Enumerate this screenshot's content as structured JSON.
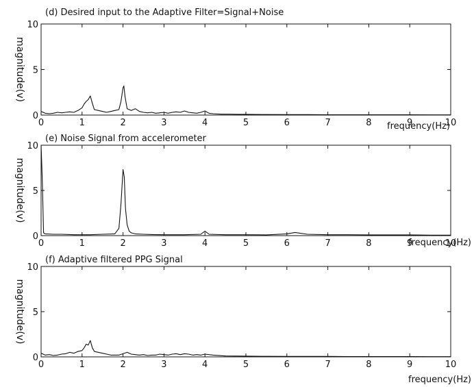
{
  "chart_data": [
    {
      "type": "line",
      "title": "(d) Desired input to the Adaptive Filter=Signal+Noise",
      "xlabel": "frequency(Hz)",
      "ylabel": "magnitude(v)",
      "xlim": [
        0,
        10
      ],
      "ylim": [
        0,
        10
      ],
      "xticks": [
        "0",
        "1",
        "2",
        "3",
        "4",
        "5",
        "6",
        "7",
        "8",
        "9",
        "10"
      ],
      "yticks": [
        "0",
        "5",
        "10"
      ],
      "grid": false,
      "series": [
        {
          "x": [
            0,
            0.1,
            0.2,
            0.3,
            0.4,
            0.5,
            0.6,
            0.7,
            0.8,
            0.9,
            1.0,
            1.05,
            1.1,
            1.15,
            1.2,
            1.25,
            1.3,
            1.4,
            1.5,
            1.6,
            1.7,
            1.8,
            1.9,
            1.95,
            2.0,
            2.02,
            2.05,
            2.1,
            2.2,
            2.3,
            2.4,
            2.5,
            2.6,
            2.7,
            2.8,
            2.9,
            3.0,
            3.1,
            3.2,
            3.3,
            3.4,
            3.5,
            3.6,
            3.7,
            3.8,
            3.9,
            4.0,
            4.1,
            4.2,
            4.4,
            4.6,
            4.8,
            5.0,
            5.5,
            6.0,
            6.5,
            7.0,
            7.5,
            8.0,
            8.5,
            9.0,
            9.5,
            10.0
          ],
          "y": [
            0.4,
            0.2,
            0.15,
            0.2,
            0.3,
            0.25,
            0.3,
            0.35,
            0.3,
            0.5,
            0.8,
            1.2,
            1.5,
            1.7,
            2.1,
            1.3,
            0.6,
            0.5,
            0.4,
            0.3,
            0.4,
            0.5,
            0.6,
            1.5,
            3.0,
            3.2,
            2.0,
            0.7,
            0.5,
            0.7,
            0.4,
            0.3,
            0.25,
            0.3,
            0.2,
            0.25,
            0.3,
            0.2,
            0.3,
            0.35,
            0.3,
            0.45,
            0.3,
            0.25,
            0.2,
            0.3,
            0.45,
            0.2,
            0.15,
            0.1,
            0.1,
            0.08,
            0.08,
            0.06,
            0.05,
            0.05,
            0.04,
            0.04,
            0.03,
            0.03,
            0.03,
            0.02,
            0.02
          ]
        }
      ]
    },
    {
      "type": "line",
      "title": "(e) Noise Signal from accelerometer",
      "xlabel": "frequency(Hz)",
      "ylabel": "magnitude(v)",
      "xlim": [
        0,
        10
      ],
      "ylim": [
        0,
        10
      ],
      "xticks": [
        "0",
        "1",
        "2",
        "3",
        "4",
        "5",
        "6",
        "7",
        "8",
        "9",
        "10"
      ],
      "yticks": [
        "0",
        "5",
        "10"
      ],
      "grid": false,
      "series": [
        {
          "x": [
            0,
            0.03,
            0.06,
            0.1,
            0.3,
            0.5,
            0.8,
            1.0,
            1.2,
            1.5,
            1.8,
            1.9,
            1.95,
            2.0,
            2.03,
            2.06,
            2.1,
            2.15,
            2.2,
            2.3,
            2.5,
            2.7,
            3.0,
            3.5,
            3.9,
            4.0,
            4.1,
            4.5,
            5.0,
            5.5,
            6.0,
            6.2,
            6.5,
            7.0,
            7.5,
            8.0,
            8.5,
            9.0,
            9.5,
            10.0
          ],
          "y": [
            10,
            6,
            0.3,
            0.2,
            0.15,
            0.15,
            0.1,
            0.1,
            0.1,
            0.15,
            0.2,
            0.8,
            3.5,
            7.3,
            6.5,
            3.0,
            1.2,
            0.5,
            0.3,
            0.2,
            0.15,
            0.12,
            0.1,
            0.1,
            0.15,
            0.5,
            0.15,
            0.1,
            0.1,
            0.08,
            0.2,
            0.35,
            0.15,
            0.1,
            0.1,
            0.08,
            0.08,
            0.08,
            0.05,
            0.05
          ]
        }
      ]
    },
    {
      "type": "line",
      "title": "(f) Adaptive filtered PPG Signal",
      "xlabel": "frequency(Hz)",
      "ylabel": "magnitude(v)",
      "xlim": [
        0,
        10
      ],
      "ylim": [
        0,
        10
      ],
      "xticks": [
        "0",
        "1",
        "2",
        "3",
        "4",
        "5",
        "6",
        "7",
        "8",
        "9",
        "10"
      ],
      "yticks": [
        "0",
        "5",
        "10"
      ],
      "grid": false,
      "series": [
        {
          "x": [
            0,
            0.1,
            0.2,
            0.3,
            0.4,
            0.5,
            0.6,
            0.7,
            0.8,
            0.9,
            1.0,
            1.05,
            1.1,
            1.15,
            1.2,
            1.25,
            1.3,
            1.4,
            1.5,
            1.6,
            1.7,
            1.8,
            1.9,
            2.0,
            2.1,
            2.2,
            2.3,
            2.4,
            2.5,
            2.6,
            2.7,
            2.8,
            2.9,
            3.0,
            3.1,
            3.2,
            3.3,
            3.4,
            3.5,
            3.6,
            3.7,
            3.8,
            3.9,
            4.0,
            4.2,
            4.5,
            5.0,
            5.5,
            6.0,
            6.5,
            7.0,
            7.5,
            8.0,
            8.5,
            9.0,
            9.5,
            10.0
          ],
          "y": [
            0.4,
            0.2,
            0.25,
            0.15,
            0.2,
            0.3,
            0.35,
            0.5,
            0.4,
            0.6,
            0.7,
            1.0,
            1.4,
            1.3,
            1.8,
            1.0,
            0.6,
            0.5,
            0.4,
            0.3,
            0.2,
            0.2,
            0.2,
            0.35,
            0.5,
            0.3,
            0.25,
            0.2,
            0.25,
            0.15,
            0.2,
            0.2,
            0.3,
            0.25,
            0.2,
            0.3,
            0.35,
            0.25,
            0.35,
            0.3,
            0.2,
            0.25,
            0.2,
            0.3,
            0.2,
            0.1,
            0.08,
            0.06,
            0.05,
            0.05,
            0.05,
            0.04,
            0.04,
            0.03,
            0.03,
            0.02,
            0.02
          ]
        }
      ]
    }
  ]
}
